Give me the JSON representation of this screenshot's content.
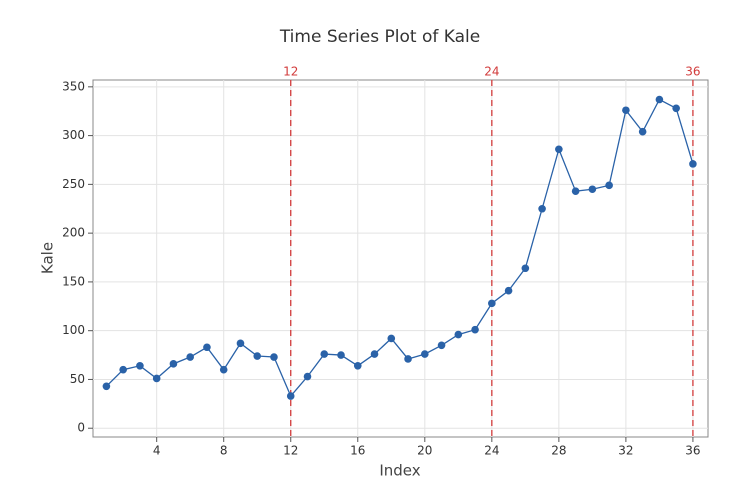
{
  "chart_data": {
    "type": "line",
    "title": "Time Series Plot of Kale",
    "x_label": "Index",
    "y_label": "Kale",
    "x": [
      1,
      2,
      3,
      4,
      5,
      6,
      7,
      8,
      9,
      10,
      11,
      12,
      13,
      14,
      15,
      16,
      17,
      18,
      19,
      20,
      21,
      22,
      23,
      24,
      25,
      26,
      27,
      28,
      29,
      30,
      31,
      32,
      33,
      34,
      35,
      36
    ],
    "series": [
      {
        "name": "Kale",
        "color": "#2a62a8",
        "values": [
          43,
          60,
          64,
          51,
          66,
          73,
          83,
          60,
          87,
          74,
          73,
          33,
          53,
          76,
          75,
          64,
          76,
          92,
          71,
          76,
          85,
          96,
          101,
          128,
          141,
          164,
          225,
          286,
          243,
          245,
          249,
          326,
          304,
          337,
          328,
          271
        ]
      }
    ],
    "xlim": [
      0.2,
      36.9
    ],
    "xticks": [
      4,
      8,
      12,
      16,
      20,
      24,
      28,
      32,
      36
    ],
    "ylim": [
      -9,
      357
    ],
    "yticks": [
      0,
      50,
      100,
      150,
      200,
      250,
      300,
      350
    ],
    "reference_lines": [
      12,
      24,
      36
    ],
    "reference_color": "#d23b3b",
    "grid": true
  }
}
